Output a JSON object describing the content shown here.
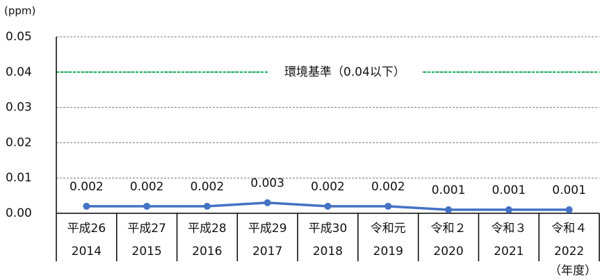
{
  "chart_data": {
    "type": "line",
    "y_unit": "(ppm)",
    "x_unit": "（年度）",
    "categories": [
      [
        "平成26",
        "2014"
      ],
      [
        "平成27",
        "2015"
      ],
      [
        "平成28",
        "2016"
      ],
      [
        "平成29",
        "2017"
      ],
      [
        "平成30",
        "2018"
      ],
      [
        "令和元",
        "2019"
      ],
      [
        "令和２",
        "2020"
      ],
      [
        "令和３",
        "2021"
      ],
      [
        "令和４",
        "2022"
      ]
    ],
    "series": [
      {
        "color": "#4472c4",
        "values": [
          0.002,
          0.002,
          0.002,
          0.003,
          0.002,
          0.002,
          0.001,
          0.001,
          0.001
        ]
      }
    ],
    "ylim": [
      0,
      0.05
    ],
    "yticks": [
      {
        "value": 0,
        "label": "0.00"
      },
      0.01,
      0.02,
      0.03,
      0.04,
      0.05
    ],
    "grid": true,
    "reference_line": {
      "value": 0.04,
      "label": "環境基準（0.04以下）",
      "color": "#00b050"
    }
  }
}
